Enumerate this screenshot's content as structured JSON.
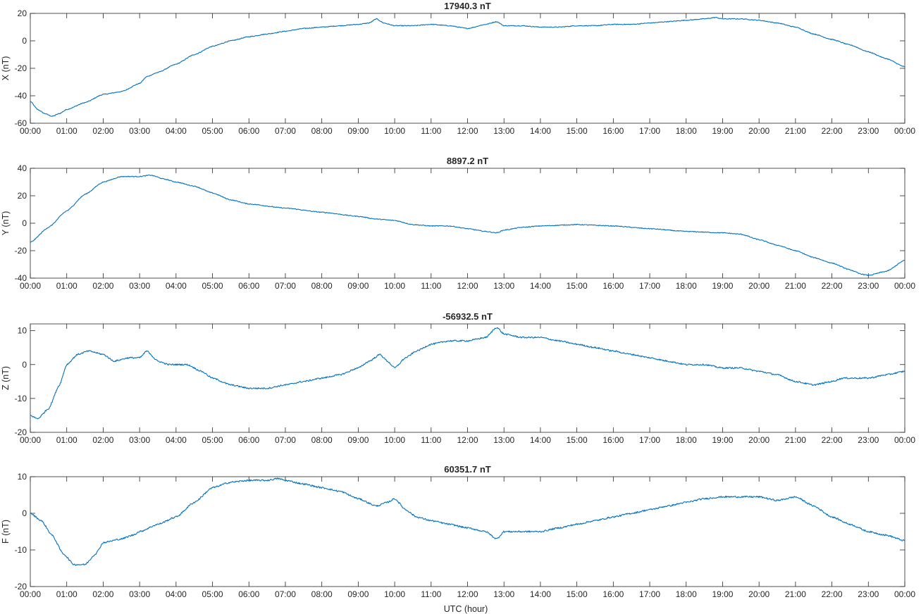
{
  "figure": {
    "xlabel": "UTC (hour)",
    "line_color": "#0072BD"
  },
  "chart_data": [
    {
      "type": "line",
      "title": "17940.3 nT",
      "ylabel": "X (nT)",
      "xlim": [
        0,
        24
      ],
      "ylim": [
        -60,
        20
      ],
      "yticks": [
        -60,
        -40,
        -20,
        0,
        20
      ],
      "xticks": [
        "00:00",
        "01:00",
        "02:00",
        "03:00",
        "04:00",
        "05:00",
        "06:00",
        "07:00",
        "08:00",
        "09:00",
        "10:00",
        "11:00",
        "12:00",
        "13:00",
        "14:00",
        "15:00",
        "16:00",
        "17:00",
        "18:00",
        "19:00",
        "20:00",
        "21:00",
        "22:00",
        "23:00",
        "00:00"
      ],
      "noise": 0.6,
      "series": [
        {
          "x": [
            0,
            0.2,
            0.4,
            0.6,
            0.8,
            1,
            1.5,
            2,
            2.5,
            3,
            3.2,
            3.5,
            4,
            4.5,
            5,
            5.5,
            6,
            6.5,
            7,
            7.5,
            8,
            8.5,
            9,
            9.3,
            9.5,
            9.7,
            10,
            10.5,
            11,
            11.5,
            12,
            12.5,
            12.8,
            13,
            13.5,
            14,
            14.5,
            15,
            15.5,
            16,
            16.5,
            17,
            17.5,
            18,
            18.5,
            18.8,
            19,
            19.5,
            20,
            20.5,
            21,
            21.5,
            22,
            22.5,
            23,
            23.5,
            24
          ],
          "y": [
            -44,
            -50,
            -53,
            -55,
            -53,
            -50,
            -45,
            -39,
            -37,
            -31,
            -26,
            -23,
            -17,
            -10,
            -4,
            0,
            3,
            5,
            7,
            9,
            10,
            11,
            12,
            13,
            16,
            13,
            11,
            11,
            12,
            11,
            9,
            12,
            14,
            11,
            11,
            10,
            10,
            11,
            11,
            12,
            12,
            13,
            14,
            15,
            16,
            17,
            16,
            16,
            15,
            13,
            10,
            5,
            1,
            -3,
            -8,
            -13,
            -19
          ]
        }
      ]
    },
    {
      "type": "line",
      "title": "8897.2 nT",
      "ylabel": "Y (nT)",
      "xlim": [
        0,
        24
      ],
      "ylim": [
        -40,
        40
      ],
      "yticks": [
        -40,
        -20,
        0,
        20,
        40
      ],
      "xticks": [
        "00:00",
        "01:00",
        "02:00",
        "03:00",
        "04:00",
        "05:00",
        "06:00",
        "07:00",
        "08:00",
        "09:00",
        "10:00",
        "11:00",
        "12:00",
        "13:00",
        "14:00",
        "15:00",
        "16:00",
        "17:00",
        "18:00",
        "19:00",
        "20:00",
        "21:00",
        "22:00",
        "23:00",
        "00:00"
      ],
      "noise": 0.6,
      "series": [
        {
          "x": [
            0,
            0.5,
            1,
            1.5,
            2,
            2.5,
            3,
            3.3,
            3.7,
            4,
            4.5,
            5,
            5.5,
            6,
            7,
            8,
            9,
            9.5,
            10,
            10.5,
            11,
            11.5,
            12,
            12.5,
            12.8,
            13,
            13.5,
            14,
            15,
            16,
            17,
            18,
            19,
            19.5,
            20,
            20.5,
            21,
            21.5,
            22,
            22.5,
            22.8,
            23,
            23.5,
            24
          ],
          "y": [
            -14,
            -3,
            9,
            21,
            30,
            34,
            34,
            35,
            32,
            30,
            27,
            22,
            17,
            14,
            11,
            8,
            5,
            3,
            2,
            -1,
            -2,
            -2,
            -4,
            -6,
            -7,
            -5,
            -3,
            -2,
            -1,
            -2,
            -4,
            -6,
            -7,
            -8,
            -12,
            -16,
            -20,
            -25,
            -29,
            -34,
            -37,
            -38,
            -35,
            -27
          ]
        }
      ]
    },
    {
      "type": "line",
      "title": "-56932.5 nT",
      "ylabel": "Z (nT)",
      "xlim": [
        0,
        24
      ],
      "ylim": [
        -20,
        12
      ],
      "yticks": [
        -20,
        -10,
        0,
        10
      ],
      "xticks": [
        "00:00",
        "01:00",
        "02:00",
        "03:00",
        "04:00",
        "05:00",
        "06:00",
        "07:00",
        "08:00",
        "09:00",
        "10:00",
        "11:00",
        "12:00",
        "13:00",
        "14:00",
        "15:00",
        "16:00",
        "17:00",
        "18:00",
        "19:00",
        "20:00",
        "21:00",
        "22:00",
        "23:00",
        "00:00"
      ],
      "noise": 0.45,
      "series": [
        {
          "x": [
            0,
            0.2,
            0.5,
            0.8,
            1,
            1.3,
            1.6,
            2,
            2.3,
            2.7,
            3,
            3.2,
            3.5,
            3.8,
            4,
            4.3,
            4.7,
            5,
            5.5,
            6,
            6.5,
            7,
            7.5,
            8,
            8.5,
            9,
            9.3,
            9.6,
            9.8,
            10,
            10.3,
            10.6,
            11,
            11.5,
            12,
            12.5,
            12.8,
            13,
            13.5,
            14,
            14.5,
            15,
            15.5,
            16,
            16.5,
            17,
            17.5,
            18,
            18.5,
            19,
            19.5,
            20,
            20.5,
            21,
            21.5,
            22,
            22.3,
            22.6,
            23,
            23.5,
            24
          ],
          "y": [
            -15,
            -16,
            -13,
            -6,
            0,
            3,
            4,
            3,
            1,
            2,
            2,
            4,
            1,
            0,
            0,
            0,
            -2,
            -4,
            -6,
            -7,
            -7,
            -6,
            -5,
            -4,
            -3,
            -1,
            1,
            3,
            1,
            -1,
            2,
            4,
            6,
            7,
            7,
            8,
            11,
            9,
            8,
            8,
            7,
            6,
            5,
            4,
            3,
            2,
            1,
            0,
            0,
            -1,
            -1,
            -2,
            -3,
            -5,
            -6,
            -5,
            -4,
            -4,
            -4,
            -3,
            -2
          ]
        }
      ]
    },
    {
      "type": "line",
      "title": "60351.7 nT",
      "ylabel": "F (nT)",
      "xlim": [
        0,
        24
      ],
      "ylim": [
        -20,
        10
      ],
      "yticks": [
        -20,
        -10,
        0,
        10
      ],
      "xticks": [
        "00:00",
        "01:00",
        "02:00",
        "03:00",
        "04:00",
        "05:00",
        "06:00",
        "07:00",
        "08:00",
        "09:00",
        "10:00",
        "11:00",
        "12:00",
        "13:00",
        "14:00",
        "15:00",
        "16:00",
        "17:00",
        "18:00",
        "19:00",
        "20:00",
        "21:00",
        "22:00",
        "23:00",
        "00:00"
      ],
      "noise": 0.45,
      "series": [
        {
          "x": [
            0,
            0.3,
            0.6,
            0.9,
            1.2,
            1.5,
            1.8,
            2,
            2.5,
            2.8,
            3,
            3.5,
            4,
            4.5,
            5,
            5.5,
            6,
            6.5,
            6.8,
            7,
            7.5,
            8,
            8.5,
            9,
            9.5,
            9.8,
            10,
            10.3,
            10.6,
            11,
            11.5,
            12,
            12.5,
            12.8,
            13,
            13.5,
            14,
            14.5,
            15,
            15.5,
            16,
            16.5,
            17,
            17.5,
            18,
            18.5,
            19,
            19.5,
            20,
            20.5,
            21,
            21.5,
            22,
            22.5,
            23,
            23.5,
            24
          ],
          "y": [
            0,
            -2,
            -6,
            -11,
            -14,
            -14,
            -11,
            -8,
            -7,
            -6,
            -5,
            -3,
            -1,
            3,
            7,
            8.5,
            9,
            9,
            9.5,
            9,
            8,
            7,
            6,
            4,
            2,
            3,
            4,
            1,
            -1,
            -2,
            -3,
            -4,
            -5,
            -7,
            -5,
            -5,
            -5,
            -4,
            -3,
            -2,
            -1,
            0,
            1,
            2,
            3,
            4,
            4.5,
            4.5,
            4.5,
            3.5,
            4.5,
            2,
            -1,
            -3,
            -5,
            -6,
            -7.5
          ]
        }
      ]
    }
  ]
}
